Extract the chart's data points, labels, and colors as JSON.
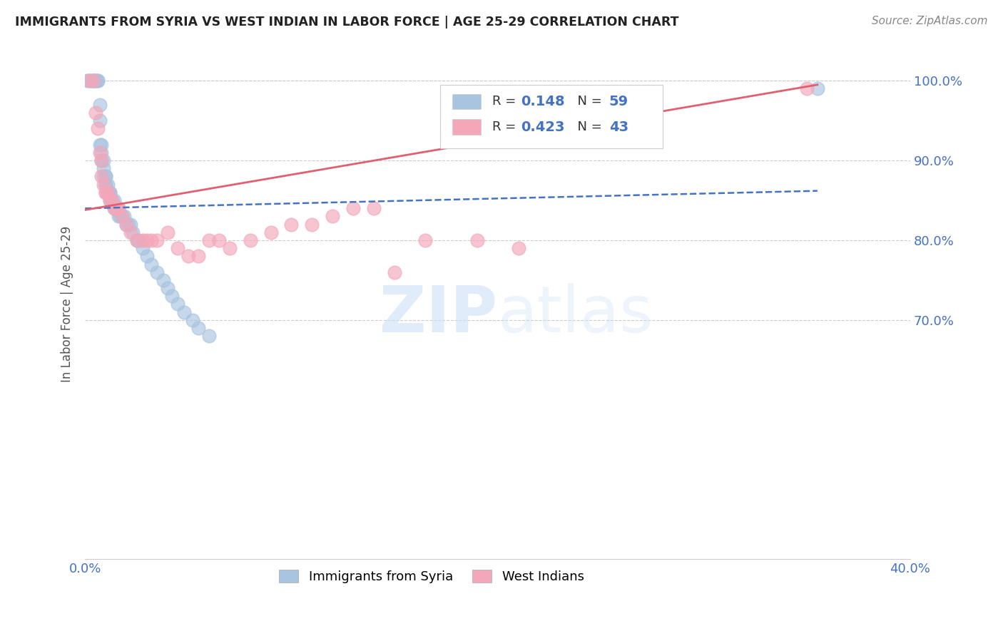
{
  "title": "IMMIGRANTS FROM SYRIA VS WEST INDIAN IN LABOR FORCE | AGE 25-29 CORRELATION CHART",
  "source": "Source: ZipAtlas.com",
  "ylabel": "In Labor Force | Age 25-29",
  "xlim": [
    0.0,
    0.4
  ],
  "ylim": [
    0.4,
    1.04
  ],
  "xticks": [
    0.0,
    0.05,
    0.1,
    0.15,
    0.2,
    0.25,
    0.3,
    0.35,
    0.4
  ],
  "xtick_labels": [
    "0.0%",
    "",
    "",
    "",
    "",
    "",
    "",
    "",
    "40.0%"
  ],
  "yticks": [
    0.7,
    0.8,
    0.9,
    1.0
  ],
  "ytick_labels": [
    "70.0%",
    "80.0%",
    "90.0%",
    "100.0%"
  ],
  "syria_R": 0.148,
  "syria_N": 59,
  "west_indian_R": 0.423,
  "west_indian_N": 43,
  "syria_color": "#a8c4e0",
  "west_indian_color": "#f4a7b9",
  "syria_line_color": "#4472c4",
  "west_indian_line_color": "#e06070",
  "background_color": "#ffffff",
  "syria_x": [
    0.001,
    0.002,
    0.003,
    0.004,
    0.004,
    0.005,
    0.005,
    0.006,
    0.006,
    0.007,
    0.007,
    0.007,
    0.008,
    0.008,
    0.008,
    0.009,
    0.009,
    0.009,
    0.01,
    0.01,
    0.01,
    0.01,
    0.011,
    0.011,
    0.011,
    0.012,
    0.012,
    0.012,
    0.013,
    0.013,
    0.014,
    0.014,
    0.015,
    0.015,
    0.015,
    0.016,
    0.016,
    0.017,
    0.018,
    0.019,
    0.02,
    0.021,
    0.022,
    0.023,
    0.025,
    0.026,
    0.028,
    0.03,
    0.032,
    0.035,
    0.038,
    0.04,
    0.042,
    0.045,
    0.048,
    0.052,
    0.055,
    0.06,
    0.355
  ],
  "syria_y": [
    1.0,
    1.0,
    1.0,
    1.0,
    1.0,
    1.0,
    1.0,
    1.0,
    1.0,
    0.97,
    0.95,
    0.92,
    0.92,
    0.91,
    0.9,
    0.9,
    0.89,
    0.88,
    0.88,
    0.88,
    0.87,
    0.87,
    0.87,
    0.86,
    0.86,
    0.86,
    0.86,
    0.85,
    0.85,
    0.85,
    0.85,
    0.84,
    0.84,
    0.84,
    0.84,
    0.84,
    0.83,
    0.83,
    0.83,
    0.83,
    0.82,
    0.82,
    0.82,
    0.81,
    0.8,
    0.8,
    0.79,
    0.78,
    0.77,
    0.76,
    0.75,
    0.74,
    0.73,
    0.72,
    0.71,
    0.7,
    0.69,
    0.68,
    0.99
  ],
  "west_indian_x": [
    0.002,
    0.004,
    0.005,
    0.006,
    0.007,
    0.008,
    0.008,
    0.009,
    0.01,
    0.01,
    0.011,
    0.012,
    0.013,
    0.014,
    0.015,
    0.016,
    0.018,
    0.02,
    0.022,
    0.025,
    0.028,
    0.03,
    0.032,
    0.035,
    0.04,
    0.045,
    0.05,
    0.055,
    0.06,
    0.065,
    0.07,
    0.08,
    0.09,
    0.1,
    0.11,
    0.12,
    0.13,
    0.14,
    0.15,
    0.165,
    0.19,
    0.21,
    0.35
  ],
  "west_indian_y": [
    1.0,
    1.0,
    0.96,
    0.94,
    0.91,
    0.9,
    0.88,
    0.87,
    0.86,
    0.86,
    0.86,
    0.85,
    0.85,
    0.84,
    0.84,
    0.84,
    0.83,
    0.82,
    0.81,
    0.8,
    0.8,
    0.8,
    0.8,
    0.8,
    0.81,
    0.79,
    0.78,
    0.78,
    0.8,
    0.8,
    0.79,
    0.8,
    0.81,
    0.82,
    0.82,
    0.83,
    0.84,
    0.84,
    0.76,
    0.8,
    0.8,
    0.79,
    0.99
  ]
}
